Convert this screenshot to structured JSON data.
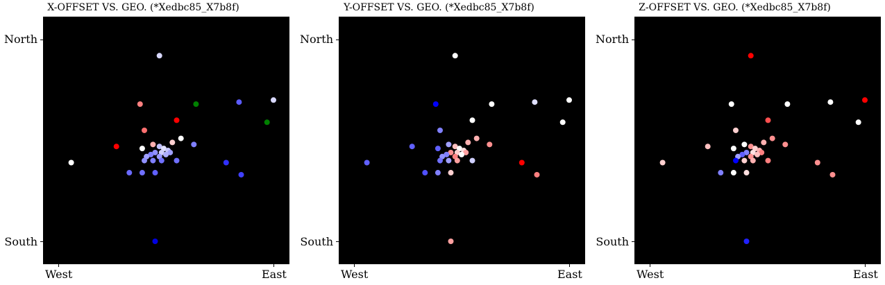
{
  "chart_data": [
    {
      "type": "scatter",
      "title": "X-OFFSET VS. GEO. (*Xedbc85_X7b8f)",
      "x_tick_labels": [
        "West",
        "East"
      ],
      "y_tick_labels": [
        "North",
        "South"
      ],
      "xlim": [
        0,
        1
      ],
      "ylim": [
        0,
        1
      ],
      "grid": false,
      "points": [
        {
          "x": 0.47,
          "y": 0.92,
          "color": "#d8d8ff"
        },
        {
          "x": 0.38,
          "y": 0.68,
          "color": "#ff8080"
        },
        {
          "x": 0.64,
          "y": 0.68,
          "color": "#008000"
        },
        {
          "x": 0.84,
          "y": 0.69,
          "color": "#5c5cff"
        },
        {
          "x": 1.0,
          "y": 0.7,
          "color": "#d8d8ff"
        },
        {
          "x": 0.55,
          "y": 0.6,
          "color": "#ff0000"
        },
        {
          "x": 0.97,
          "y": 0.59,
          "color": "#008000"
        },
        {
          "x": 0.4,
          "y": 0.55,
          "color": "#ff7070"
        },
        {
          "x": 0.27,
          "y": 0.47,
          "color": "#ff0000"
        },
        {
          "x": 0.06,
          "y": 0.39,
          "color": "#ffffff"
        },
        {
          "x": 0.44,
          "y": 0.48,
          "color": "#ffb0b0"
        },
        {
          "x": 0.53,
          "y": 0.49,
          "color": "#ffd0d0"
        },
        {
          "x": 0.57,
          "y": 0.51,
          "color": "#ffffff"
        },
        {
          "x": 0.63,
          "y": 0.48,
          "color": "#8080ff"
        },
        {
          "x": 0.39,
          "y": 0.46,
          "color": "#ffffff"
        },
        {
          "x": 0.47,
          "y": 0.47,
          "color": "#c0c0ff"
        },
        {
          "x": 0.49,
          "y": 0.46,
          "color": "#e0e0ff"
        },
        {
          "x": 0.51,
          "y": 0.45,
          "color": "#c8c8ff"
        },
        {
          "x": 0.52,
          "y": 0.44,
          "color": "#a0a0ff"
        },
        {
          "x": 0.48,
          "y": 0.44,
          "color": "#d0d0ff"
        },
        {
          "x": 0.45,
          "y": 0.44,
          "color": "#9090ff"
        },
        {
          "x": 0.43,
          "y": 0.43,
          "color": "#8080ff"
        },
        {
          "x": 0.41,
          "y": 0.42,
          "color": "#a0a0ff"
        },
        {
          "x": 0.5,
          "y": 0.43,
          "color": "#b0b0ff"
        },
        {
          "x": 0.47,
          "y": 0.42,
          "color": "#9a9aff"
        },
        {
          "x": 0.44,
          "y": 0.4,
          "color": "#8080ff"
        },
        {
          "x": 0.4,
          "y": 0.4,
          "color": "#9090ff"
        },
        {
          "x": 0.48,
          "y": 0.4,
          "color": "#7070ff"
        },
        {
          "x": 0.55,
          "y": 0.4,
          "color": "#7070ff"
        },
        {
          "x": 0.78,
          "y": 0.39,
          "color": "#3030ff"
        },
        {
          "x": 0.33,
          "y": 0.34,
          "color": "#6a6aff"
        },
        {
          "x": 0.39,
          "y": 0.34,
          "color": "#7070ff"
        },
        {
          "x": 0.45,
          "y": 0.34,
          "color": "#6060ff"
        },
        {
          "x": 0.85,
          "y": 0.33,
          "color": "#4040ff"
        },
        {
          "x": 0.45,
          "y": 0.0,
          "color": "#0000e0"
        }
      ]
    },
    {
      "type": "scatter",
      "title": "Y-OFFSET VS. GEO. (*Xedbc85_X7b8f)",
      "x_tick_labels": [
        "West",
        "East"
      ],
      "y_tick_labels": [
        "North",
        "South"
      ],
      "xlim": [
        0,
        1
      ],
      "ylim": [
        0,
        1
      ],
      "grid": false,
      "points": [
        {
          "x": 0.47,
          "y": 0.92,
          "color": "#ffffff"
        },
        {
          "x": 0.38,
          "y": 0.68,
          "color": "#0000ff"
        },
        {
          "x": 0.64,
          "y": 0.68,
          "color": "#ffffff"
        },
        {
          "x": 0.84,
          "y": 0.69,
          "color": "#e0e0ff"
        },
        {
          "x": 1.0,
          "y": 0.7,
          "color": "#ffffff"
        },
        {
          "x": 0.55,
          "y": 0.6,
          "color": "#ffffff"
        },
        {
          "x": 0.97,
          "y": 0.59,
          "color": "#ffffff"
        },
        {
          "x": 0.4,
          "y": 0.55,
          "color": "#8080ff"
        },
        {
          "x": 0.27,
          "y": 0.47,
          "color": "#6060ff"
        },
        {
          "x": 0.06,
          "y": 0.39,
          "color": "#6060ff"
        },
        {
          "x": 0.44,
          "y": 0.48,
          "color": "#a0a0ff"
        },
        {
          "x": 0.53,
          "y": 0.49,
          "color": "#ffb0b0"
        },
        {
          "x": 0.57,
          "y": 0.51,
          "color": "#ffb0b0"
        },
        {
          "x": 0.63,
          "y": 0.48,
          "color": "#ff9090"
        },
        {
          "x": 0.39,
          "y": 0.46,
          "color": "#6060ff"
        },
        {
          "x": 0.47,
          "y": 0.47,
          "color": "#ffc0c0"
        },
        {
          "x": 0.49,
          "y": 0.46,
          "color": "#ffffff"
        },
        {
          "x": 0.51,
          "y": 0.45,
          "color": "#ffe0e0"
        },
        {
          "x": 0.52,
          "y": 0.44,
          "color": "#ffa0a0"
        },
        {
          "x": 0.48,
          "y": 0.44,
          "color": "#ffd0d0"
        },
        {
          "x": 0.45,
          "y": 0.44,
          "color": "#ff9090"
        },
        {
          "x": 0.43,
          "y": 0.43,
          "color": "#8080ff"
        },
        {
          "x": 0.41,
          "y": 0.42,
          "color": "#9090ff"
        },
        {
          "x": 0.5,
          "y": 0.43,
          "color": "#ffffff"
        },
        {
          "x": 0.47,
          "y": 0.42,
          "color": "#ff8080"
        },
        {
          "x": 0.44,
          "y": 0.4,
          "color": "#a0a0ff"
        },
        {
          "x": 0.4,
          "y": 0.4,
          "color": "#7070ff"
        },
        {
          "x": 0.48,
          "y": 0.4,
          "color": "#ffa0a0"
        },
        {
          "x": 0.55,
          "y": 0.4,
          "color": "#d0d0ff"
        },
        {
          "x": 0.78,
          "y": 0.39,
          "color": "#ff0000"
        },
        {
          "x": 0.33,
          "y": 0.34,
          "color": "#5050ff"
        },
        {
          "x": 0.39,
          "y": 0.34,
          "color": "#8080ff"
        },
        {
          "x": 0.45,
          "y": 0.34,
          "color": "#ffd0d0"
        },
        {
          "x": 0.85,
          "y": 0.33,
          "color": "#ff8080"
        },
        {
          "x": 0.45,
          "y": 0.0,
          "color": "#ffa0a0"
        }
      ]
    },
    {
      "type": "scatter",
      "title": "Z-OFFSET VS. GEO. (*Xedbc85_X7b8f)",
      "x_tick_labels": [
        "West",
        "East"
      ],
      "y_tick_labels": [
        "North",
        "South"
      ],
      "xlim": [
        0,
        1
      ],
      "ylim": [
        0,
        1
      ],
      "grid": false,
      "points": [
        {
          "x": 0.47,
          "y": 0.92,
          "color": "#ff0000"
        },
        {
          "x": 0.38,
          "y": 0.68,
          "color": "#ffffff"
        },
        {
          "x": 0.64,
          "y": 0.68,
          "color": "#ffffff"
        },
        {
          "x": 0.84,
          "y": 0.69,
          "color": "#ffffff"
        },
        {
          "x": 1.0,
          "y": 0.7,
          "color": "#ff0000"
        },
        {
          "x": 0.55,
          "y": 0.6,
          "color": "#ff5050"
        },
        {
          "x": 0.97,
          "y": 0.59,
          "color": "#ffffff"
        },
        {
          "x": 0.4,
          "y": 0.55,
          "color": "#ffd0d0"
        },
        {
          "x": 0.27,
          "y": 0.47,
          "color": "#ffc0c0"
        },
        {
          "x": 0.06,
          "y": 0.39,
          "color": "#ffd0d0"
        },
        {
          "x": 0.44,
          "y": 0.48,
          "color": "#ffffff"
        },
        {
          "x": 0.53,
          "y": 0.49,
          "color": "#ffb0b0"
        },
        {
          "x": 0.57,
          "y": 0.51,
          "color": "#ff9090"
        },
        {
          "x": 0.63,
          "y": 0.48,
          "color": "#ff9090"
        },
        {
          "x": 0.39,
          "y": 0.46,
          "color": "#ffffff"
        },
        {
          "x": 0.47,
          "y": 0.47,
          "color": "#ff9090"
        },
        {
          "x": 0.49,
          "y": 0.46,
          "color": "#ffd0d0"
        },
        {
          "x": 0.51,
          "y": 0.45,
          "color": "#ffb0b0"
        },
        {
          "x": 0.52,
          "y": 0.44,
          "color": "#ff8080"
        },
        {
          "x": 0.48,
          "y": 0.44,
          "color": "#ffe0e0"
        },
        {
          "x": 0.45,
          "y": 0.44,
          "color": "#8080ff"
        },
        {
          "x": 0.43,
          "y": 0.43,
          "color": "#6060ff"
        },
        {
          "x": 0.41,
          "y": 0.42,
          "color": "#a0a0ff"
        },
        {
          "x": 0.5,
          "y": 0.43,
          "color": "#ffc0c0"
        },
        {
          "x": 0.47,
          "y": 0.42,
          "color": "#ff9090"
        },
        {
          "x": 0.44,
          "y": 0.4,
          "color": "#ffd0d0"
        },
        {
          "x": 0.4,
          "y": 0.4,
          "color": "#0000ff"
        },
        {
          "x": 0.48,
          "y": 0.4,
          "color": "#ffb0b0"
        },
        {
          "x": 0.55,
          "y": 0.4,
          "color": "#ff8080"
        },
        {
          "x": 0.78,
          "y": 0.39,
          "color": "#ff9090"
        },
        {
          "x": 0.33,
          "y": 0.34,
          "color": "#8080ff"
        },
        {
          "x": 0.39,
          "y": 0.34,
          "color": "#ffffff"
        },
        {
          "x": 0.45,
          "y": 0.34,
          "color": "#ffe0e0"
        },
        {
          "x": 0.85,
          "y": 0.33,
          "color": "#ff9090"
        },
        {
          "x": 0.45,
          "y": 0.0,
          "color": "#2020ff"
        }
      ]
    }
  ]
}
